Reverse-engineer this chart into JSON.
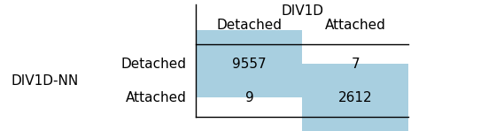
{
  "title_col": "DIV1D",
  "title_row": "DIV1D-NN",
  "col_labels": [
    "Detached",
    "Attached"
  ],
  "row_labels": [
    "Detached",
    "Attached"
  ],
  "values": [
    [
      9557,
      7
    ],
    [
      9,
      2612
    ]
  ],
  "diagonal_color": "#a8cfe0",
  "offdiagonal_color": "#ffffff",
  "background_color": "#ffffff",
  "fontsize": 11,
  "title_fontsize": 11
}
